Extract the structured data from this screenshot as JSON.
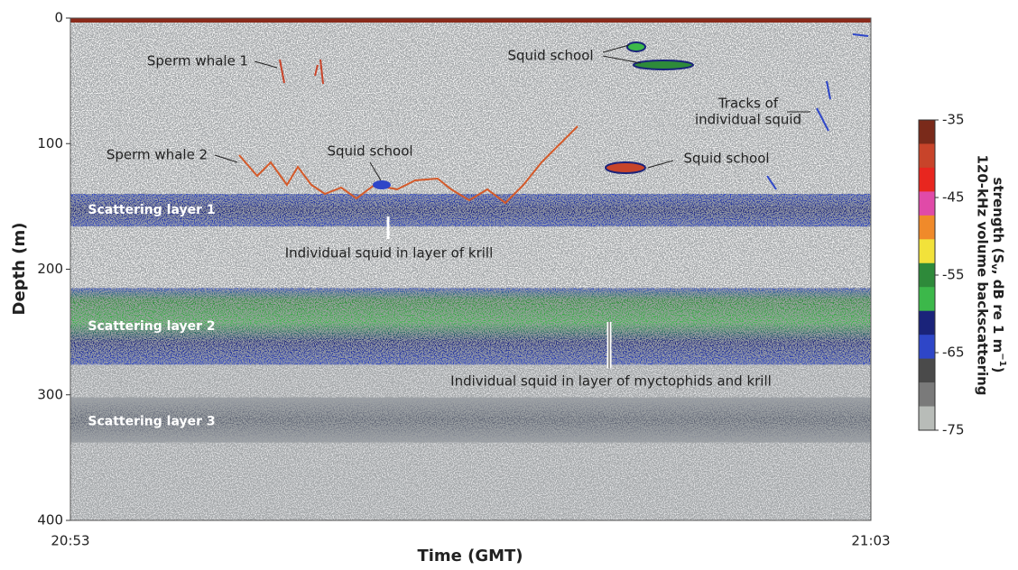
{
  "chart_data": {
    "type": "echogram",
    "y_label": "Depth (m)",
    "x_label": "Time (GMT)",
    "ylim": [
      0,
      400
    ],
    "yticks": [
      0,
      100,
      200,
      300,
      400
    ],
    "xticks": [
      "20:53",
      "21:03"
    ],
    "layers": [
      {
        "label": "Scattering layer 1",
        "top": 140,
        "bottom": 166
      },
      {
        "label": "Scattering layer 2",
        "top": 215,
        "bottom": 276
      },
      {
        "label": "Scattering layer 3",
        "top": 302,
        "bottom": 338
      }
    ],
    "annotations": [
      "Sperm whale 1",
      "Squid school",
      "Tracks of",
      "individual squid",
      "Sperm whale 2",
      "Squid school",
      "Squid school",
      "Individual squid in layer of krill",
      "Individual squid in layer of myctophids and krill"
    ],
    "colorbar": {
      "lim": [
        -35,
        -75
      ],
      "ticks": [
        -35,
        -45,
        -55,
        -65,
        -75
      ],
      "colors": [
        "#7a2a1a",
        "#c8442a",
        "#e8261f",
        "#e04aa8",
        "#f08a2a",
        "#f2e23a",
        "#2e8a3a",
        "#3cb84a",
        "#1a237a",
        "#2e46c8",
        "#4a4a4a",
        "#7a7a7a",
        "#b8bcb8"
      ],
      "label_line1": "120-kHz volume backscattering",
      "label_line2": [
        "strength (S",
        "v",
        ", dB re 1 m",
        "−1",
        ")"
      ]
    }
  }
}
